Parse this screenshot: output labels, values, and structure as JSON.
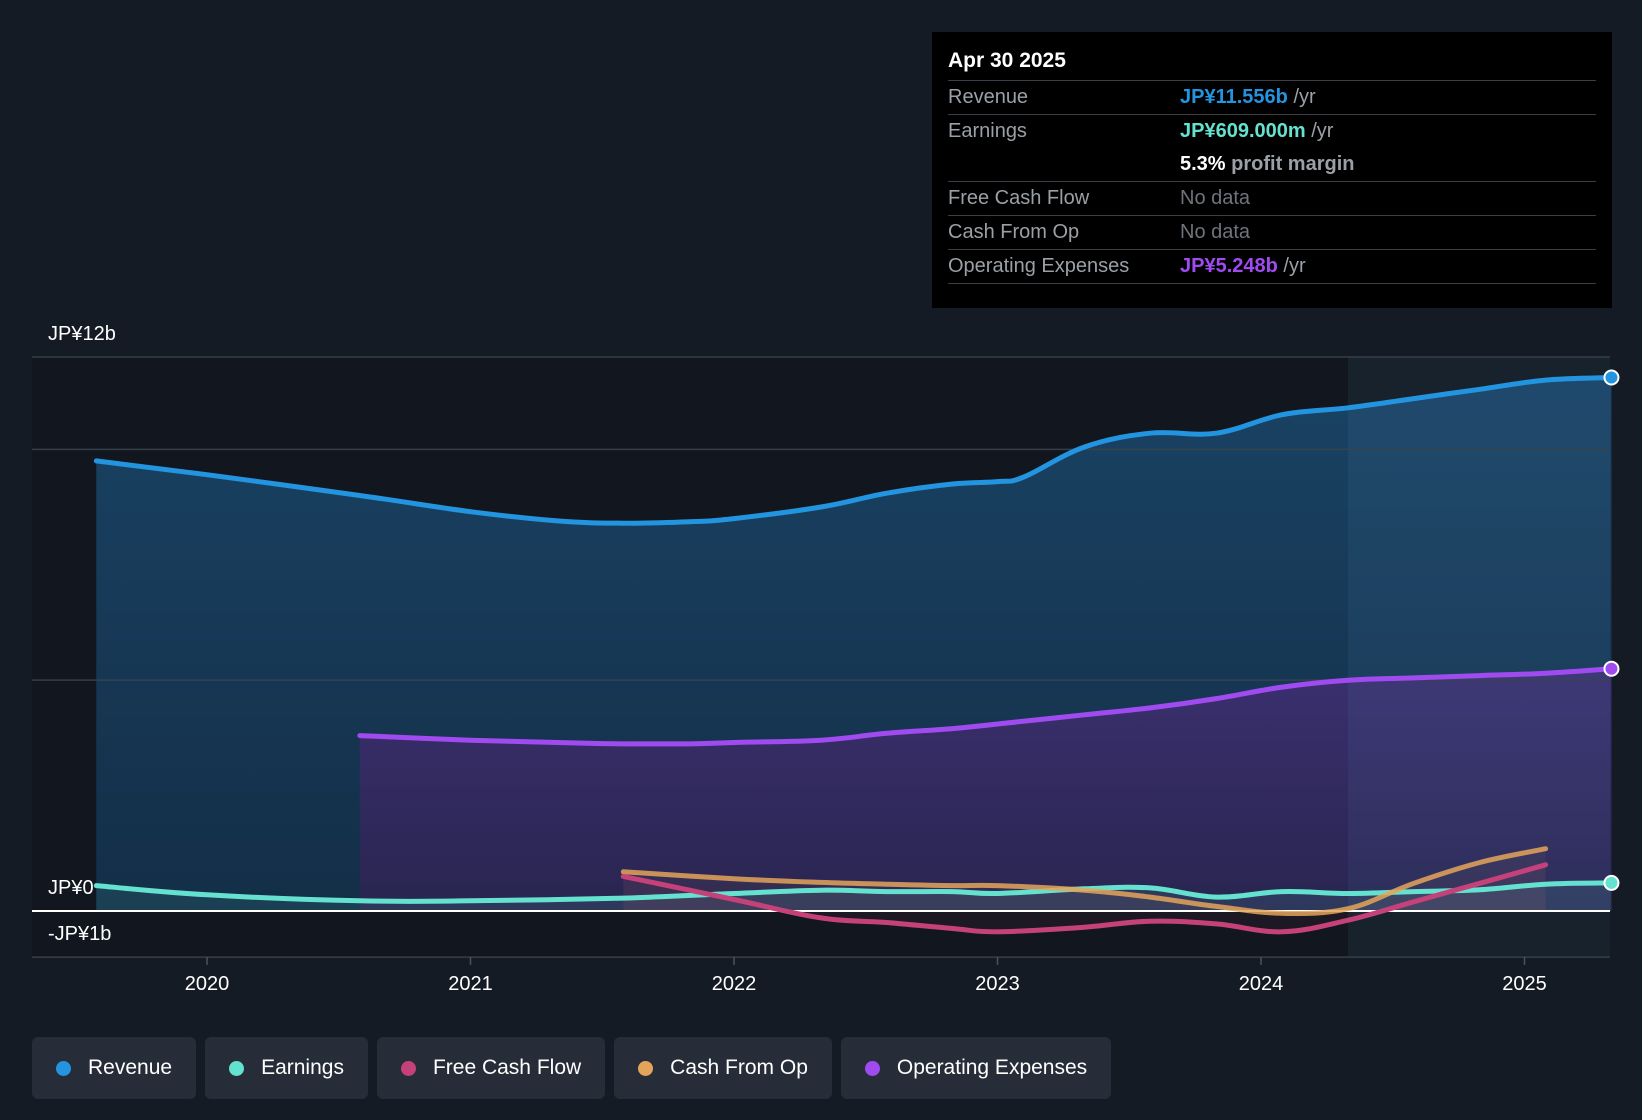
{
  "tooltip": {
    "date": "Apr 30 2025",
    "rows": {
      "revenue": {
        "label": "Revenue",
        "value": "JP¥11.556b",
        "unit": "/yr"
      },
      "earnings": {
        "label": "Earnings",
        "value": "JP¥609.000m",
        "unit": "/yr"
      },
      "margin": {
        "value": "5.3%",
        "unit": "profit margin"
      },
      "fcf": {
        "label": "Free Cash Flow",
        "value": "No data"
      },
      "cfo": {
        "label": "Cash From Op",
        "value": "No data"
      },
      "opex": {
        "label": "Operating Expenses",
        "value": "JP¥5.248b",
        "unit": "/yr"
      }
    }
  },
  "legend": {
    "revenue": "Revenue",
    "earnings": "Earnings",
    "fcf": "Free Cash Flow",
    "cfo": "Cash From Op",
    "opex": "Operating Expenses"
  },
  "colors": {
    "revenue": "#2394df",
    "earnings": "#65e2cf",
    "fcf": "#c4417a",
    "cfo": "#e4a55a",
    "opex": "#a04bf0"
  },
  "chart_data": {
    "type": "line",
    "title": "",
    "xlabel": "",
    "ylabel": "",
    "xlim": [
      2019.3,
      2025.33
    ],
    "ylim": [
      -1,
      12
    ],
    "x_ticks": [
      2020,
      2021,
      2022,
      2023,
      2024,
      2025
    ],
    "x_tick_labels": [
      "2020",
      "2021",
      "2022",
      "2023",
      "2024",
      "2025"
    ],
    "y_tick_labels": [
      {
        "value": 12,
        "label": "JP¥12b"
      },
      {
        "value": 0,
        "label": "JP¥0"
      },
      {
        "value": -1,
        "label": "-JP¥1b"
      }
    ],
    "gridlines": [
      12,
      10,
      5,
      0,
      -1
    ],
    "highlight_start": 2024.33,
    "series": [
      {
        "key": "revenue",
        "name": "Revenue",
        "fill": true,
        "x": [
          2019.58,
          2020.0,
          2020.58,
          2021.0,
          2021.33,
          2021.58,
          2021.83,
          2022.0,
          2022.33,
          2022.58,
          2022.83,
          2023.0,
          2023.1,
          2023.33,
          2023.58,
          2023.83,
          2024.08,
          2024.33,
          2024.58,
          2024.83,
          2025.08,
          2025.33
        ],
        "values": [
          9.75,
          9.45,
          9.0,
          8.65,
          8.45,
          8.4,
          8.43,
          8.5,
          8.75,
          9.05,
          9.25,
          9.3,
          9.4,
          10.05,
          10.35,
          10.35,
          10.75,
          10.9,
          11.1,
          11.3,
          11.5,
          11.556
        ]
      },
      {
        "key": "opex",
        "name": "Operating Expenses",
        "fill": true,
        "x": [
          2020.58,
          2021.0,
          2021.33,
          2021.58,
          2021.83,
          2022.0,
          2022.33,
          2022.58,
          2022.83,
          2023.0,
          2023.33,
          2023.58,
          2023.83,
          2024.08,
          2024.33,
          2024.58,
          2024.83,
          2025.08,
          2025.33
        ],
        "values": [
          3.8,
          3.7,
          3.65,
          3.62,
          3.62,
          3.65,
          3.7,
          3.85,
          3.95,
          4.05,
          4.25,
          4.4,
          4.6,
          4.85,
          5.0,
          5.05,
          5.1,
          5.15,
          5.248
        ]
      },
      {
        "key": "earnings",
        "name": "Earnings",
        "fill": true,
        "x": [
          2019.58,
          2020.0,
          2020.58,
          2021.0,
          2021.58,
          2022.0,
          2022.33,
          2022.58,
          2022.83,
          2023.0,
          2023.33,
          2023.58,
          2023.83,
          2024.08,
          2024.33,
          2024.58,
          2024.83,
          2025.08,
          2025.33
        ],
        "values": [
          0.55,
          0.35,
          0.22,
          0.22,
          0.28,
          0.38,
          0.45,
          0.42,
          0.42,
          0.38,
          0.48,
          0.5,
          0.3,
          0.42,
          0.38,
          0.42,
          0.46,
          0.58,
          0.609
        ]
      },
      {
        "key": "fcf",
        "name": "Free Cash Flow",
        "fill": false,
        "x": [
          2021.58,
          2022.0,
          2022.33,
          2022.58,
          2022.83,
          2023.0,
          2023.33,
          2023.58,
          2023.83,
          2024.08,
          2024.33,
          2024.58,
          2024.83,
          2025.08
        ],
        "values": [
          0.75,
          0.25,
          -0.15,
          -0.25,
          -0.38,
          -0.45,
          -0.35,
          -0.22,
          -0.28,
          -0.45,
          -0.2,
          0.2,
          0.6,
          1.0
        ]
      },
      {
        "key": "cfo",
        "name": "Cash From Op",
        "fill": false,
        "x": [
          2021.58,
          2022.0,
          2022.33,
          2022.58,
          2022.83,
          2023.0,
          2023.33,
          2023.58,
          2023.83,
          2024.08,
          2024.33,
          2024.58,
          2024.83,
          2025.08
        ],
        "values": [
          0.85,
          0.7,
          0.62,
          0.58,
          0.55,
          0.55,
          0.45,
          0.3,
          0.1,
          -0.05,
          0.05,
          0.6,
          1.05,
          1.35
        ]
      }
    ]
  }
}
